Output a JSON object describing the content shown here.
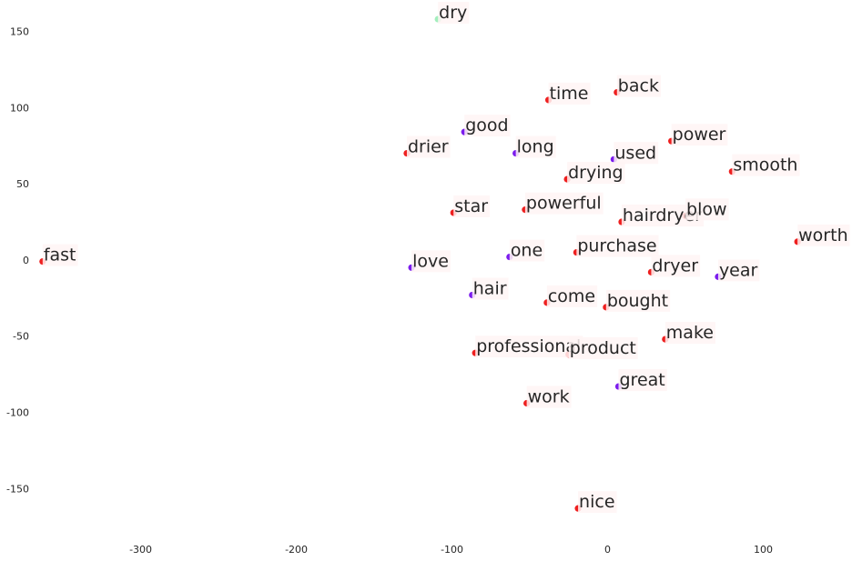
{
  "chart_data": {
    "type": "scatter",
    "title": "",
    "xlabel": "",
    "ylabel": "",
    "xlim": [
      -367,
      157
    ],
    "ylim": [
      -182,
      167
    ],
    "grid": false,
    "legend": "none",
    "x_ticks": [
      -300,
      -200,
      -100,
      0,
      100
    ],
    "y_ticks": [
      150,
      100,
      50,
      0,
      -50,
      -100,
      -150
    ],
    "colors": {
      "red": "#ee1f1f",
      "purple": "#7b1bed",
      "green": "#a3eebd",
      "text": "#262626",
      "label_bg": "#fff5f5"
    },
    "points": [
      {
        "label": "dry",
        "x": -109,
        "y": 158,
        "color": "green"
      },
      {
        "label": "time",
        "x": -38,
        "y": 105,
        "color": "red"
      },
      {
        "label": "back",
        "x": 6,
        "y": 110,
        "color": "red"
      },
      {
        "label": "good",
        "x": -92,
        "y": 84,
        "color": "purple"
      },
      {
        "label": "power",
        "x": 41,
        "y": 78,
        "color": "red"
      },
      {
        "label": "drier",
        "x": -129,
        "y": 70,
        "color": "red"
      },
      {
        "label": "long",
        "x": -59,
        "y": 70,
        "color": "purple"
      },
      {
        "label": "used",
        "x": 4,
        "y": 66,
        "color": "purple"
      },
      {
        "label": "smooth",
        "x": 80,
        "y": 58,
        "color": "red"
      },
      {
        "label": "drying",
        "x": -26,
        "y": 53,
        "color": "red"
      },
      {
        "label": "star",
        "x": -99,
        "y": 31,
        "color": "red"
      },
      {
        "label": "powerful",
        "x": -53,
        "y": 33,
        "color": "red"
      },
      {
        "label": "hairdryer",
        "x": 9,
        "y": 25,
        "color": "red"
      },
      {
        "label": "blow",
        "x": 50,
        "y": 29,
        "color": "red"
      },
      {
        "label": "worth",
        "x": 122,
        "y": 12,
        "color": "red"
      },
      {
        "label": "fast",
        "x": -363,
        "y": -1,
        "color": "red"
      },
      {
        "label": "love",
        "x": -126,
        "y": -5,
        "color": "purple"
      },
      {
        "label": "one",
        "x": -63,
        "y": 2,
        "color": "purple"
      },
      {
        "label": "purchase",
        "x": -20,
        "y": 5,
        "color": "red"
      },
      {
        "label": "dryer",
        "x": 28,
        "y": -8,
        "color": "red"
      },
      {
        "label": "year",
        "x": 71,
        "y": -11,
        "color": "purple"
      },
      {
        "label": "hair",
        "x": -87,
        "y": -23,
        "color": "purple"
      },
      {
        "label": "come",
        "x": -39,
        "y": -28,
        "color": "red"
      },
      {
        "label": "bought",
        "x": -1,
        "y": -31,
        "color": "red"
      },
      {
        "label": "make",
        "x": 37,
        "y": -52,
        "color": "red"
      },
      {
        "label": "professional",
        "x": -85,
        "y": -61,
        "color": "red"
      },
      {
        "label": "product",
        "x": -25,
        "y": -62,
        "color": "red"
      },
      {
        "label": "great",
        "x": 7,
        "y": -83,
        "color": "purple"
      },
      {
        "label": "work",
        "x": -52,
        "y": -94,
        "color": "red"
      },
      {
        "label": "nice",
        "x": -19,
        "y": -163,
        "color": "red"
      }
    ]
  }
}
